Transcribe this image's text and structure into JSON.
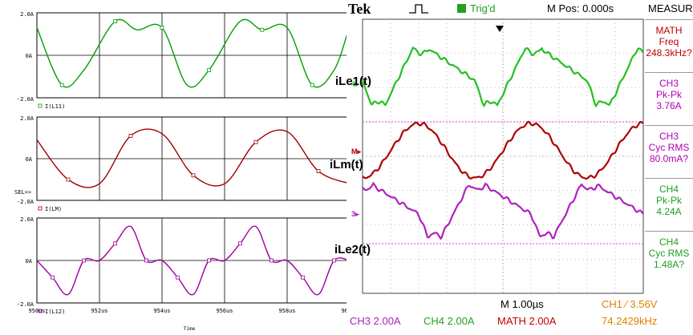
{
  "simulation": {
    "panels": [
      {
        "ytop": "2.0A",
        "ymid": "0A",
        "ybot": "-2.0A",
        "legend": "I(L11)",
        "color": "#00a000"
      },
      {
        "ytop": "2.0A",
        "ymid": "0A",
        "ybot": "-2.0A",
        "legend": "I(LM)",
        "color": "#a00000"
      },
      {
        "ytop": "2.0A",
        "ymid": "0A",
        "ybot": "-2.0A",
        "legend": "I(L12)",
        "color": "#a000a0"
      }
    ],
    "sel_label": "SEL>>",
    "x_ticks": [
      "950us",
      "952us",
      "954us",
      "956us",
      "958us",
      "960us"
    ],
    "x_title": "Time"
  },
  "annotations": {
    "ile1": "iLe1(t)",
    "ilm": "iLm(t)",
    "ile2": "iLe2(t)"
  },
  "scope": {
    "brand": "Tek",
    "trig": "Trig'd",
    "mpos": "M Pos: 0.000s",
    "measure": "MEASURE",
    "ch_markers": [
      "4",
      "M",
      "3"
    ],
    "meas_items": [
      {
        "line1": "MATH",
        "line2": "Freq",
        "value": "248.3kHz?",
        "color": "#c00000"
      },
      {
        "line1": "CH3",
        "line2": "Pk-Pk",
        "value": "3.76A",
        "color": "#b000b0"
      },
      {
        "line1": "CH3",
        "line2": "Cyc RMS",
        "value": "80.0mA?",
        "color": "#b000b0"
      },
      {
        "line1": "CH4",
        "line2": "Pk-Pk",
        "value": "4.24A",
        "color": "#20a020"
      },
      {
        "line1": "CH4",
        "line2": "Cyc RMS",
        "value": "1.48A?",
        "color": "#20a020"
      }
    ],
    "timebase": "M 1.00µs",
    "trigger_setting": "CH1 ∕ 3.56V",
    "ch3": "CH3  2.00A",
    "ch4": "CH4  2.00A",
    "math": "MATH 2.00A",
    "freq": "74.2429kHz",
    "colors": {
      "ch4": "#22c022",
      "math": "#b00000",
      "ch3": "#b020c0",
      "trig": "#e08000"
    }
  },
  "chart_data": [
    {
      "type": "line",
      "title": "",
      "xlabel": "Time",
      "x_unit": "us",
      "xlim": [
        950,
        960
      ],
      "ylim": [
        -2,
        2
      ],
      "series": [
        {
          "name": "I(L11)",
          "x": [
            950,
            950.8,
            951.5,
            952.5,
            953.2,
            954,
            954.8,
            955.5,
            956.5,
            957.2,
            958,
            958.8,
            959.5,
            960
          ],
          "y": [
            1.3,
            -1.4,
            -0.7,
            1.6,
            1.2,
            1.3,
            -1.4,
            -0.7,
            1.6,
            1.2,
            1.3,
            -1.4,
            -0.7,
            1.4
          ]
        }
      ]
    },
    {
      "type": "line",
      "title": "",
      "xlabel": "Time",
      "x_unit": "us",
      "xlim": [
        950,
        960
      ],
      "ylim": [
        -2,
        2
      ],
      "series": [
        {
          "name": "I(LM)",
          "x": [
            950,
            951,
            952,
            953,
            954,
            955,
            956,
            957,
            958,
            959,
            960
          ],
          "y": [
            0.9,
            -1.0,
            -1.2,
            1.1,
            1.2,
            -0.8,
            -1.2,
            0.8,
            1.3,
            -0.6,
            -1.2
          ]
        }
      ]
    },
    {
      "type": "line",
      "title": "",
      "xlabel": "Time",
      "x_unit": "us",
      "xlim": [
        950,
        960
      ],
      "ylim": [
        -2,
        2
      ],
      "series": [
        {
          "name": "I(L12)",
          "x": [
            950,
            950.5,
            951,
            951.5,
            952,
            952.5,
            953,
            953.5,
            954,
            954.5,
            955,
            955.5,
            956,
            956.5,
            957,
            957.5,
            958,
            958.5,
            959,
            959.5,
            960
          ],
          "y": [
            0,
            -0.8,
            -1.6,
            0,
            0,
            0.8,
            1.6,
            0,
            0,
            -0.8,
            -1.6,
            0,
            0,
            0.8,
            1.6,
            0,
            0,
            -0.8,
            -1.6,
            0,
            0
          ]
        }
      ]
    }
  ]
}
